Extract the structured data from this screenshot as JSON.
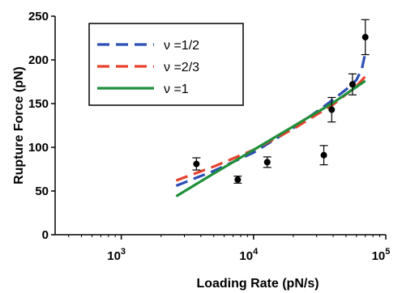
{
  "chart_data": {
    "type": "scatter",
    "xlabel": "Loading Rate (pN/s)",
    "ylabel": "Rupture Force (pN)",
    "x_scale": "log",
    "xlim": [
      316,
      100000
    ],
    "ylim": [
      0,
      250
    ],
    "x_ticks": [
      {
        "value": 1000,
        "base": "10",
        "exp": "3"
      },
      {
        "value": 10000,
        "base": "10",
        "exp": "4"
      },
      {
        "value": 100000,
        "base": "10",
        "exp": "5"
      }
    ],
    "y_ticks": [
      0,
      50,
      100,
      150,
      200,
      250
    ],
    "grid": false,
    "legend_position": "top-left",
    "points": [
      {
        "x": 3700,
        "y": 81,
        "err": 7
      },
      {
        "x": 7600,
        "y": 63,
        "err": 4
      },
      {
        "x": 12700,
        "y": 83,
        "err": 6
      },
      {
        "x": 34000,
        "y": 91,
        "err": 11
      },
      {
        "x": 39000,
        "y": 143,
        "err": 14
      },
      {
        "x": 56000,
        "y": 172,
        "err": 12
      },
      {
        "x": 70000,
        "y": 226,
        "err": 20
      }
    ],
    "series": [
      {
        "name": "ν =1/2",
        "color": "#2c4fb5",
        "dash": "dashed",
        "x": [
          2600,
          5000,
          10000,
          20000,
          35000,
          50000,
          60000,
          66000,
          70000
        ],
        "y": [
          56,
          73,
          94,
          122,
          148,
          166,
          177,
          190,
          208
        ]
      },
      {
        "name": "ν =2/3",
        "color": "#e8402d",
        "dash": "dashed",
        "x": [
          2600,
          5000,
          10000,
          20000,
          40000,
          60000,
          70000
        ],
        "y": [
          62,
          78,
          97,
          121,
          149,
          170,
          181
        ]
      },
      {
        "name": "ν =1",
        "color": "#1f8f3a",
        "dash": "solid",
        "x": [
          2600,
          5000,
          10000,
          20000,
          40000,
          70000
        ],
        "y": [
          44,
          70,
          97,
          124,
          151,
          176
        ]
      }
    ]
  }
}
